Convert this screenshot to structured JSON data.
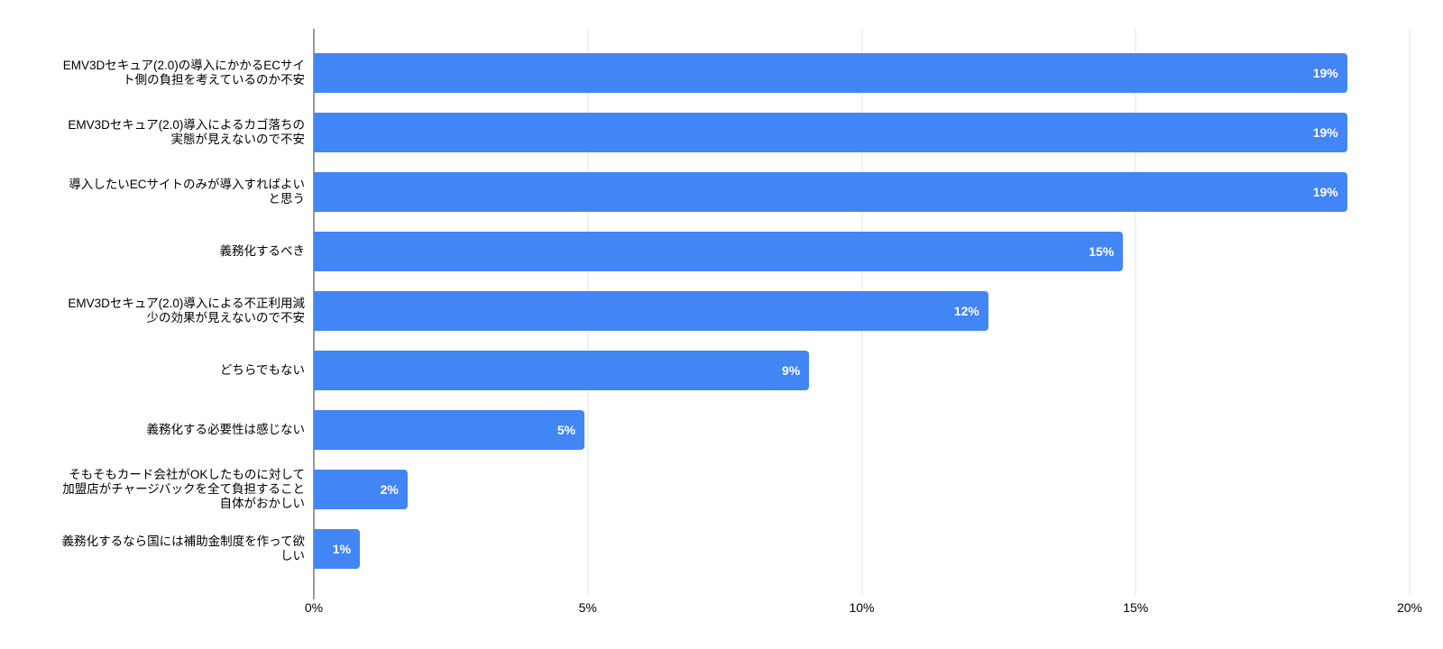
{
  "chart": {
    "title": "",
    "colors": {
      "bar": "#4285f4",
      "bar_label": "#ffffff",
      "gridline": "#e3e3e3",
      "baseline": "#333333",
      "axis_text": "#000000",
      "category_text": "#000000",
      "background": "#ffffff"
    }
  },
  "chart_data": {
    "type": "bar",
    "orientation": "horizontal",
    "title": "",
    "xlabel": "",
    "ylabel": "",
    "xlim": [
      0,
      20
    ],
    "x_tick_labels": [
      "0%",
      "5%",
      "10%",
      "15%",
      "20%"
    ],
    "x_tick_values": [
      0,
      5,
      10,
      15,
      20
    ],
    "grid": true,
    "legend": "none",
    "categories": [
      "EMV3Dセキュア(2.0)の導入にかかるECサイ\nト側の負担を考えているのか不安",
      "EMV3Dセキュア(2.0)導入によるカゴ落ちの\n実態が見えないので不安",
      "導入したいECサイトのみが導入すればよい\nと思う",
      "義務化するべき",
      "EMV3Dセキュア(2.0)導入による不正利用減\n少の効果が見えないので不安",
      "どちらでもない",
      "義務化する必要性は感じない",
      "そもそもカード会社がOKしたものに対して\n加盟店がチャージバックを全て負担すること\n自体がおかしい",
      "義務化するなら国には補助金制度を作って欲\nしい"
    ],
    "values": [
      19,
      19,
      19,
      15,
      12,
      9,
      5,
      2,
      1
    ],
    "value_labels": [
      "19%",
      "19%",
      "19%",
      "15%",
      "12%",
      "9%",
      "5%",
      "2%",
      "1%"
    ],
    "values_exact_pct": [
      18.86,
      18.86,
      18.86,
      14.77,
      12.31,
      9.04,
      4.94,
      1.71,
      0.84
    ]
  }
}
